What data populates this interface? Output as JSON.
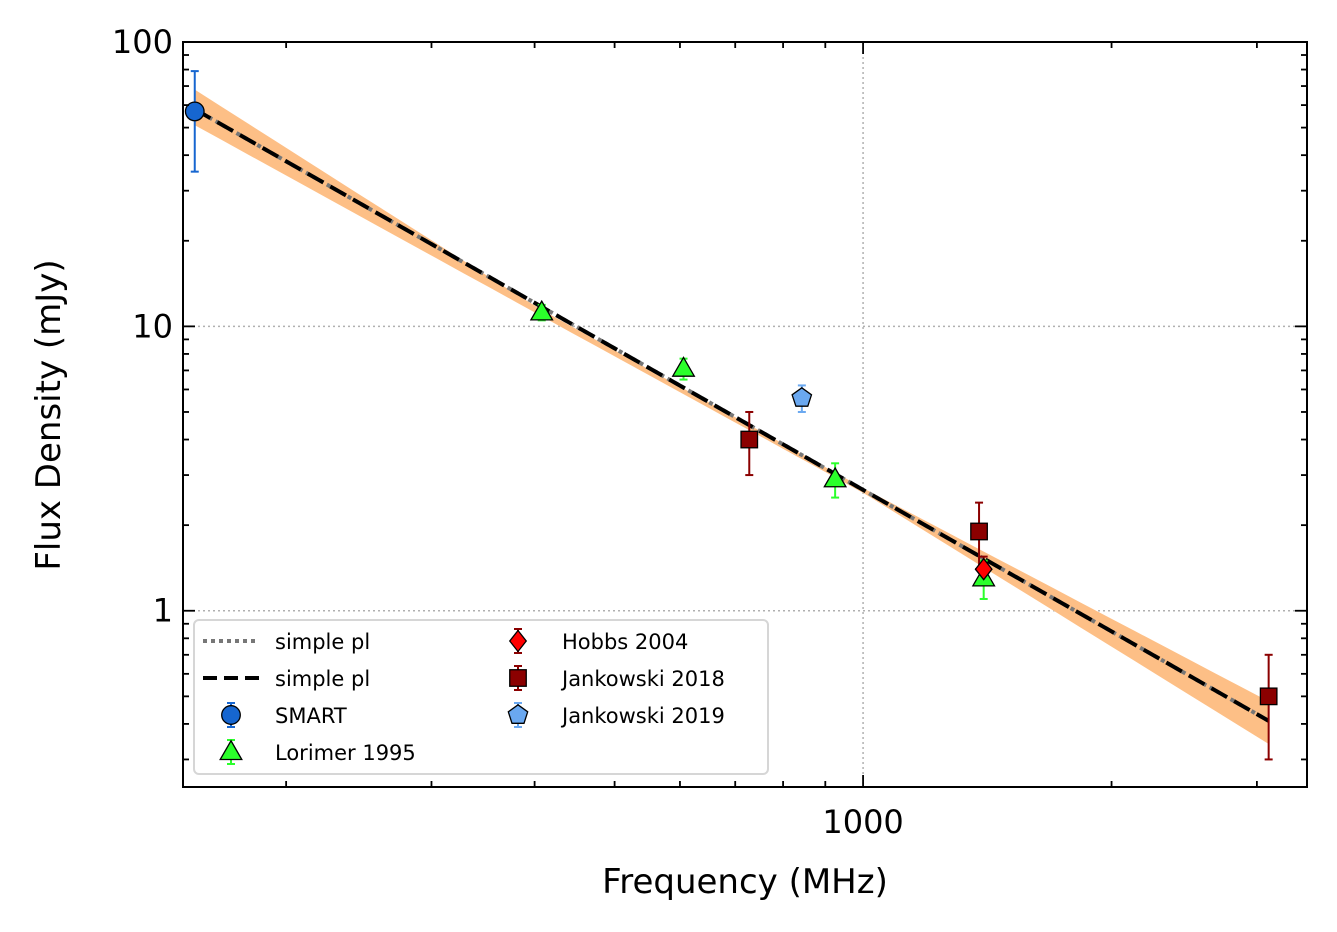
{
  "chart_data": {
    "type": "scatter",
    "xlabel": "Frequency (MHz)",
    "ylabel": "Flux Density (mJy)",
    "xscale": "log",
    "yscale": "log",
    "xlim": [
      150,
      3450
    ],
    "ylim": [
      0.24,
      100
    ],
    "x_ticks": [
      {
        "value": 1000,
        "label": "1000"
      }
    ],
    "y_ticks": [
      {
        "value": 1,
        "label": "1"
      },
      {
        "value": 10,
        "label": "10"
      },
      {
        "value": 100,
        "label": "100"
      }
    ],
    "grid": true,
    "legend_position": "bottom-left",
    "fit": {
      "x_range": [
        155,
        3100
      ],
      "band_color": "#fdbf86",
      "lines": [
        {
          "name": "simple pl",
          "style": "dotted",
          "color": "#777777",
          "points": [
            [
              155,
              58
            ],
            [
              3100,
              0.41
            ]
          ]
        },
        {
          "name": "simple pl",
          "style": "dashed",
          "color": "#000000",
          "points": [
            [
              155,
              58
            ],
            [
              3100,
              0.41
            ]
          ]
        }
      ],
      "band_upper": [
        [
          155,
          68
        ],
        [
          400,
          11.8
        ],
        [
          1000,
          2.7
        ],
        [
          3100,
          0.48
        ]
      ],
      "band_lower": [
        [
          155,
          51
        ],
        [
          400,
          11.2
        ],
        [
          1000,
          2.6
        ],
        [
          3100,
          0.34
        ]
      ]
    },
    "series": [
      {
        "name": "SMART",
        "marker": "circle",
        "color": "#1666d0",
        "ecolor": "#1666d0",
        "points": [
          {
            "x": 155,
            "y": 57,
            "lo": 35,
            "hi": 79
          }
        ]
      },
      {
        "name": "Lorimer 1995",
        "marker": "triangle",
        "color": "#2bff2b",
        "ecolor": "#2bff2b",
        "points": [
          {
            "x": 408,
            "y": 11.2,
            "lo": 10.5,
            "hi": 11.9
          },
          {
            "x": 606,
            "y": 7.1,
            "lo": 6.5,
            "hi": 7.7
          },
          {
            "x": 925,
            "y": 2.9,
            "lo": 2.5,
            "hi": 3.3
          },
          {
            "x": 1400,
            "y": 1.3,
            "lo": 1.1,
            "hi": 1.5
          }
        ]
      },
      {
        "name": "Hobbs 2004",
        "marker": "diamond",
        "color": "#ff0000",
        "ecolor": "#8b0000",
        "points": [
          {
            "x": 1400,
            "y": 1.4,
            "lo": 1.25,
            "hi": 1.55
          }
        ]
      },
      {
        "name": "Jankowski 2018",
        "marker": "square",
        "color": "#8b0000",
        "ecolor": "#8b0000",
        "points": [
          {
            "x": 728,
            "y": 4.0,
            "lo": 3.0,
            "hi": 5.0
          },
          {
            "x": 1382,
            "y": 1.9,
            "lo": 1.4,
            "hi": 2.4
          },
          {
            "x": 3100,
            "y": 0.5,
            "lo": 0.3,
            "hi": 0.7
          }
        ]
      },
      {
        "name": "Jankowski 2019",
        "marker": "pentagon",
        "color": "#6aa8f0",
        "ecolor": "#6aa8f0",
        "points": [
          {
            "x": 843,
            "y": 5.6,
            "lo": 5.0,
            "hi": 6.2
          }
        ]
      }
    ]
  }
}
